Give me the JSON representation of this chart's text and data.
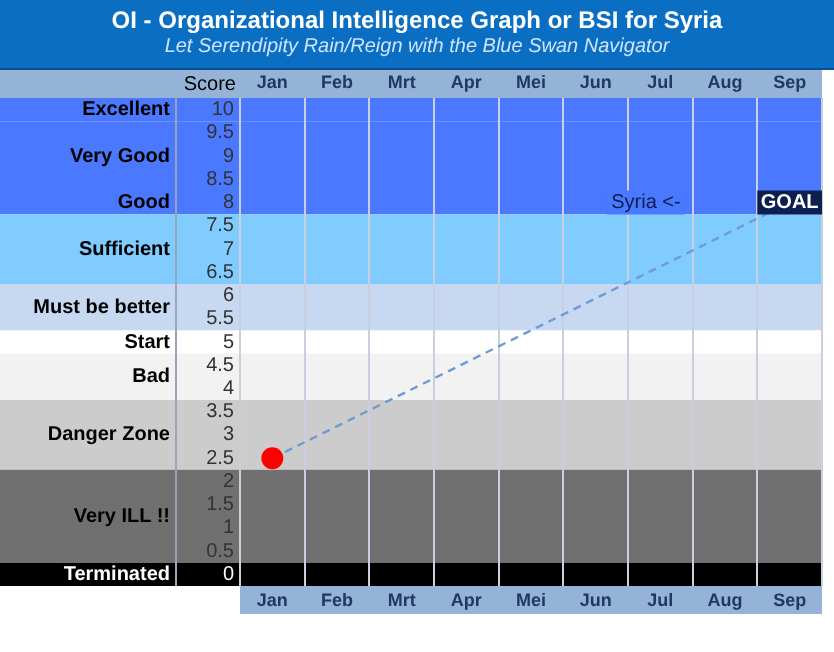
{
  "chart_data": {
    "type": "line",
    "title": "OI - Organizational Intelligence Graph or BSI for Syria",
    "subtitle": "Let Serendipity Rain/Reign with the Blue Swan Navigator",
    "ylabel": "Score",
    "categories": [
      "Jan",
      "Feb",
      "Mrt",
      "Apr",
      "Mei",
      "Jun",
      "Jul",
      "Aug",
      "Sep"
    ],
    "series": [
      {
        "x": [
          "Jan",
          "Sep"
        ],
        "values": [
          2.5,
          8
        ],
        "color": "#6f9ad6",
        "line_style": "dashed"
      },
      {
        "type": "scatter",
        "x": [
          "Jan"
        ],
        "values": [
          2.5
        ],
        "color": "#ff0000",
        "marker": "circle"
      }
    ],
    "ylim": [
      -0.25,
      10.25
    ],
    "yticks": [
      0,
      0.5,
      1,
      1.5,
      2,
      2.5,
      3,
      3.5,
      4,
      4.5,
      5,
      5.5,
      6,
      6.5,
      7,
      7.5,
      8,
      8.5,
      9,
      9.5,
      10
    ],
    "grid": "x",
    "bands": [
      {
        "axis": "y",
        "from": 9.75,
        "to": 10.25,
        "label": "Excellent",
        "color": "#4a78ff"
      },
      {
        "axis": "y",
        "from": 8.25,
        "to": 9.75,
        "label": "Very Good",
        "color": "#4a78ff"
      },
      {
        "axis": "y",
        "from": 7.75,
        "to": 8.25,
        "label": "Good",
        "color": "#4a78ff"
      },
      {
        "axis": "y",
        "from": 6.25,
        "to": 7.75,
        "label": "Sufficient",
        "color": "#80ccff"
      },
      {
        "axis": "y",
        "from": 5.25,
        "to": 6.25,
        "label": "Must be better",
        "color": "#c6d9f0"
      },
      {
        "axis": "y",
        "from": 4.75,
        "to": 5.25,
        "label": "Start",
        "color": "#ffffff"
      },
      {
        "axis": "y",
        "from": 3.75,
        "to": 4.75,
        "label": "Bad",
        "color": "#f2f2f2"
      },
      {
        "axis": "y",
        "from": 2.25,
        "to": 3.75,
        "label": "Danger Zone",
        "color": "#cccccc"
      },
      {
        "axis": "y",
        "from": 0.25,
        "to": 2.25,
        "label": "Very ILL !!",
        "color": "#707070"
      },
      {
        "axis": "y",
        "from": -0.25,
        "to": 0.25,
        "label": "Terminated",
        "color": "#000000"
      }
    ],
    "annotations": [
      "Syria <-",
      {
        "text": "GOAL",
        "x": "Sep",
        "y": 8
      }
    ]
  }
}
